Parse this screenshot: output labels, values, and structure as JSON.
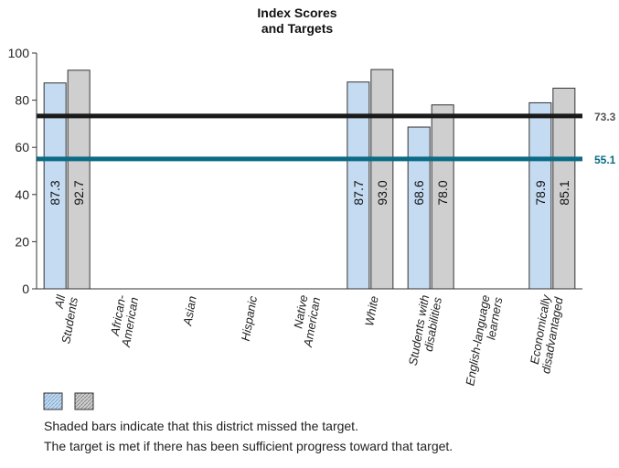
{
  "colors": {
    "bar_score": "#c5dbf2",
    "bar_target": "#cfcfcf",
    "bar_stroke": "#333333",
    "line_black": "#1a1a1a",
    "line_teal": "#0b6b85",
    "label_black": "#555555",
    "label_teal": "#0b6b85"
  },
  "chart_data": {
    "type": "bar",
    "title": "Index Scores\nand Targets",
    "ylim": [
      0,
      100
    ],
    "yticks": [
      0,
      20,
      40,
      60,
      80,
      100
    ],
    "categories": [
      "All\nStudents",
      "African-\nAmerican",
      "Asian",
      "Hispanic",
      "Native\nAmerican",
      "White",
      "Students with\ndisabilities",
      "English-language\nlearners",
      "Economically\ndisadvantaged"
    ],
    "series": [
      {
        "values": [
          87.3,
          null,
          null,
          null,
          null,
          87.7,
          68.6,
          null,
          78.9
        ]
      },
      {
        "values": [
          92.7,
          null,
          null,
          null,
          null,
          93.0,
          78.0,
          null,
          85.1
        ]
      }
    ],
    "value_labels": [
      [
        "87.3",
        null,
        null,
        null,
        null,
        "87.7",
        "68.6",
        null,
        "78.9"
      ],
      [
        "92.7",
        null,
        null,
        null,
        null,
        "93.0",
        "78.0",
        null,
        "85.1"
      ]
    ],
    "reference_lines": [
      {
        "value": 73.3,
        "label": "73.3",
        "color": "#1a1a1a"
      },
      {
        "value": 55.1,
        "label": "55.1",
        "color": "#0b6b85"
      }
    ]
  },
  "legend": {
    "note_missed": "Shaded bars indicate that this district missed the target.",
    "note_met": "The target is met if there has been sufficient progress toward that target."
  }
}
